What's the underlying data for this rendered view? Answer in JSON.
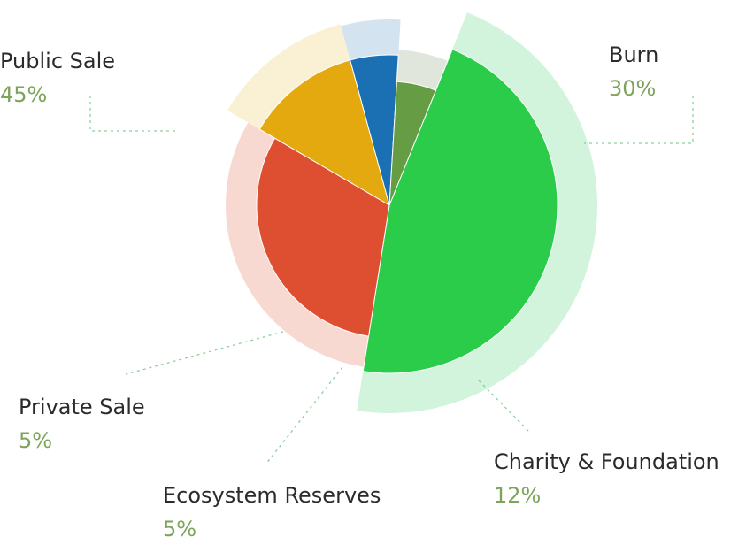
{
  "chart_data": {
    "type": "pie",
    "title": "",
    "slices": [
      {
        "label": "Public Sale",
        "value": 45,
        "value_label": "45%",
        "color": "#2bcc4a",
        "halo_color": "#d2f3dc"
      },
      {
        "label": "Burn",
        "value": 30,
        "value_label": "30%",
        "color": "#de4f31",
        "halo_color": "#f8d9d2"
      },
      {
        "label": "Charity & Foundation",
        "value": 12,
        "value_label": "12%",
        "color": "#e3a90f",
        "halo_color": "#faf0d3"
      },
      {
        "label": "Ecosystem Reserves",
        "value": 5,
        "value_label": "5%",
        "color": "#1b70b4",
        "halo_color": "#d3e3f0"
      },
      {
        "label": "Private Sale",
        "value": 5,
        "value_label": "5%",
        "color": "#669c44",
        "halo_color": "#e1e6dc"
      }
    ],
    "label_color": "#2b2b2b",
    "percent_color": "#7ea35a",
    "leader_color": "#8ccf9a"
  }
}
